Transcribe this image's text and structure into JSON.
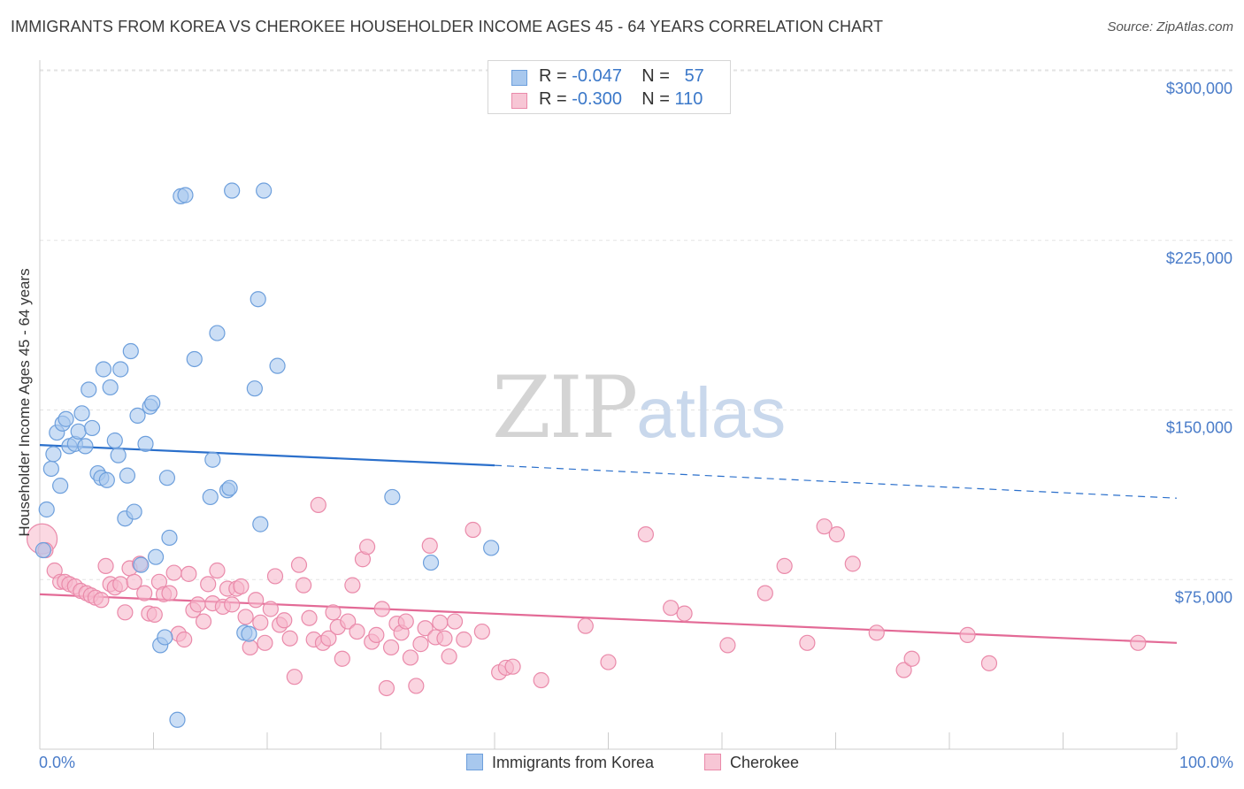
{
  "header": {
    "title": "IMMIGRANTS FROM KOREA VS CHEROKEE HOUSEHOLDER INCOME AGES 45 - 64 YEARS CORRELATION CHART",
    "source": "Source: ZipAtlas.com"
  },
  "watermark": {
    "part1": "ZIP",
    "part2": "atlas"
  },
  "legend_top": {
    "rows": [
      {
        "r_label": "R =",
        "r_value": "-0.047",
        "n_label": "N =",
        "n_value": "57"
      },
      {
        "r_label": "R =",
        "r_value": "-0.300",
        "n_label": "N =",
        "n_value": "110"
      }
    ]
  },
  "legend_bottom": {
    "series1": "Immigrants from Korea",
    "series2": "Cherokee"
  },
  "colors": {
    "korea_fill": "#a8c8ee",
    "korea_stroke": "#6d9fdc",
    "korea_line": "#2a6fcb",
    "cherokee_fill": "#f7b8cb",
    "cherokee_stroke": "#ea8aaa",
    "cherokee_line": "#e36a96",
    "tick_label": "#4a7cc9",
    "grid": "#e3e3e3"
  },
  "chart_data": {
    "type": "scatter",
    "title": "IMMIGRANTS FROM KOREA VS CHEROKEE HOUSEHOLDER INCOME AGES 45 - 64 YEARS CORRELATION CHART",
    "xlabel": "",
    "ylabel": "Householder Income Ages 45 - 64 years",
    "xlim": [
      0,
      100
    ],
    "ylim": [
      0,
      300000
    ],
    "x_tick_labels": [
      "0.0%",
      "100.0%"
    ],
    "y_ticks": [
      75000,
      150000,
      225000,
      300000
    ],
    "y_tick_labels": [
      "$75,000",
      "$150,000",
      "$225,000",
      "$300,000"
    ],
    "grid": true,
    "legend_position": "top-center",
    "series": [
      {
        "name": "Immigrants from Korea",
        "R": -0.047,
        "N": 57,
        "trend": {
          "x": [
            0,
            40,
            100
          ],
          "y": [
            134500,
            125500,
            111000
          ],
          "solid_until": 40
        },
        "points": [
          [
            0.3,
            88000
          ],
          [
            0.6,
            106000
          ],
          [
            1.0,
            124000
          ],
          [
            1.2,
            130500
          ],
          [
            1.5,
            140000
          ],
          [
            1.8,
            116500
          ],
          [
            2.0,
            144000
          ],
          [
            2.3,
            146000
          ],
          [
            2.6,
            134000
          ],
          [
            3.1,
            135000
          ],
          [
            3.4,
            140500
          ],
          [
            3.7,
            148500
          ],
          [
            4.0,
            134000
          ],
          [
            4.3,
            159000
          ],
          [
            4.6,
            142000
          ],
          [
            5.1,
            122000
          ],
          [
            5.4,
            120000
          ],
          [
            5.6,
            168000
          ],
          [
            5.9,
            119000
          ],
          [
            6.2,
            160000
          ],
          [
            6.6,
            136500
          ],
          [
            6.9,
            130000
          ],
          [
            7.1,
            168000
          ],
          [
            7.5,
            102000
          ],
          [
            7.7,
            121000
          ],
          [
            8.0,
            176000
          ],
          [
            8.3,
            105000
          ],
          [
            8.6,
            147500
          ],
          [
            8.9,
            81500
          ],
          [
            9.3,
            135000
          ],
          [
            9.7,
            151500
          ],
          [
            9.9,
            153000
          ],
          [
            10.2,
            85000
          ],
          [
            10.6,
            46000
          ],
          [
            11.0,
            49500
          ],
          [
            11.2,
            120000
          ],
          [
            11.4,
            93500
          ],
          [
            12.1,
            13000
          ],
          [
            12.4,
            244500
          ],
          [
            12.8,
            245000
          ],
          [
            13.6,
            172500
          ],
          [
            15.0,
            111500
          ],
          [
            15.2,
            128000
          ],
          [
            15.6,
            184000
          ],
          [
            16.5,
            114500
          ],
          [
            16.7,
            115500
          ],
          [
            16.9,
            247000
          ],
          [
            18.0,
            51500
          ],
          [
            18.4,
            51000
          ],
          [
            18.9,
            159500
          ],
          [
            19.2,
            199000
          ],
          [
            19.4,
            99500
          ],
          [
            19.7,
            247000
          ],
          [
            20.9,
            169500
          ],
          [
            31.0,
            111500
          ],
          [
            34.4,
            82500
          ],
          [
            39.7,
            89000
          ]
        ]
      },
      {
        "name": "Cherokee",
        "R": -0.3,
        "N": 110,
        "trend": {
          "x": [
            0,
            100
          ],
          "y": [
            68500,
            47000
          ]
        },
        "points": [
          [
            0.2,
            93000
          ],
          [
            0.5,
            88000
          ],
          [
            1.3,
            79000
          ],
          [
            1.8,
            74000
          ],
          [
            2.2,
            74000
          ],
          [
            2.6,
            73000
          ],
          [
            3.1,
            72000
          ],
          [
            3.6,
            70000
          ],
          [
            4.1,
            69000
          ],
          [
            4.5,
            68000
          ],
          [
            4.9,
            67000
          ],
          [
            5.4,
            66000
          ],
          [
            5.8,
            81000
          ],
          [
            6.2,
            73000
          ],
          [
            6.6,
            71500
          ],
          [
            7.1,
            73000
          ],
          [
            7.5,
            60500
          ],
          [
            7.9,
            80000
          ],
          [
            8.3,
            74000
          ],
          [
            8.8,
            82000
          ],
          [
            9.2,
            69000
          ],
          [
            9.6,
            60000
          ],
          [
            10.1,
            59500
          ],
          [
            10.5,
            74000
          ],
          [
            10.9,
            68500
          ],
          [
            11.4,
            69000
          ],
          [
            11.8,
            78000
          ],
          [
            12.2,
            51000
          ],
          [
            12.7,
            48500
          ],
          [
            13.1,
            77500
          ],
          [
            13.5,
            61500
          ],
          [
            13.9,
            64000
          ],
          [
            14.4,
            56500
          ],
          [
            14.8,
            73000
          ],
          [
            15.2,
            64500
          ],
          [
            15.6,
            79000
          ],
          [
            16.1,
            63000
          ],
          [
            16.5,
            71000
          ],
          [
            16.9,
            64000
          ],
          [
            17.3,
            71000
          ],
          [
            17.7,
            72000
          ],
          [
            18.1,
            58500
          ],
          [
            18.5,
            45000
          ],
          [
            19.0,
            66000
          ],
          [
            19.4,
            56000
          ],
          [
            19.8,
            47000
          ],
          [
            20.3,
            62000
          ],
          [
            20.7,
            76500
          ],
          [
            21.1,
            55000
          ],
          [
            21.5,
            57000
          ],
          [
            22.0,
            49000
          ],
          [
            22.4,
            32000
          ],
          [
            22.8,
            81500
          ],
          [
            23.2,
            72500
          ],
          [
            23.7,
            58000
          ],
          [
            24.1,
            48500
          ],
          [
            24.5,
            108000
          ],
          [
            24.9,
            47000
          ],
          [
            25.4,
            49000
          ],
          [
            25.8,
            60500
          ],
          [
            26.2,
            54000
          ],
          [
            26.6,
            40000
          ],
          [
            27.1,
            56500
          ],
          [
            27.5,
            72500
          ],
          [
            27.9,
            52000
          ],
          [
            28.4,
            84000
          ],
          [
            28.8,
            89500
          ],
          [
            29.2,
            47500
          ],
          [
            29.6,
            50500
          ],
          [
            30.1,
            62000
          ],
          [
            30.5,
            27000
          ],
          [
            30.9,
            45000
          ],
          [
            31.4,
            55500
          ],
          [
            31.8,
            51500
          ],
          [
            32.2,
            56500
          ],
          [
            32.6,
            40500
          ],
          [
            33.1,
            28000
          ],
          [
            33.5,
            46500
          ],
          [
            33.9,
            53500
          ],
          [
            34.3,
            90000
          ],
          [
            34.8,
            49500
          ],
          [
            35.2,
            56000
          ],
          [
            35.6,
            49000
          ],
          [
            36.0,
            41000
          ],
          [
            36.5,
            56500
          ],
          [
            37.3,
            48500
          ],
          [
            38.1,
            97000
          ],
          [
            38.9,
            52000
          ],
          [
            40.4,
            34000
          ],
          [
            41.0,
            36000
          ],
          [
            41.6,
            36500
          ],
          [
            44.1,
            30500
          ],
          [
            48.0,
            54500
          ],
          [
            50.0,
            38500
          ],
          [
            53.3,
            95000
          ],
          [
            55.5,
            62500
          ],
          [
            56.7,
            60000
          ],
          [
            60.5,
            46000
          ],
          [
            63.8,
            69000
          ],
          [
            65.5,
            81000
          ],
          [
            67.5,
            47000
          ],
          [
            69.0,
            98500
          ],
          [
            70.1,
            95000
          ],
          [
            71.5,
            82000
          ],
          [
            73.6,
            51500
          ],
          [
            76.0,
            35000
          ],
          [
            76.7,
            40000
          ],
          [
            81.6,
            50500
          ],
          [
            83.5,
            38000
          ],
          [
            96.6,
            47000
          ]
        ]
      }
    ]
  }
}
